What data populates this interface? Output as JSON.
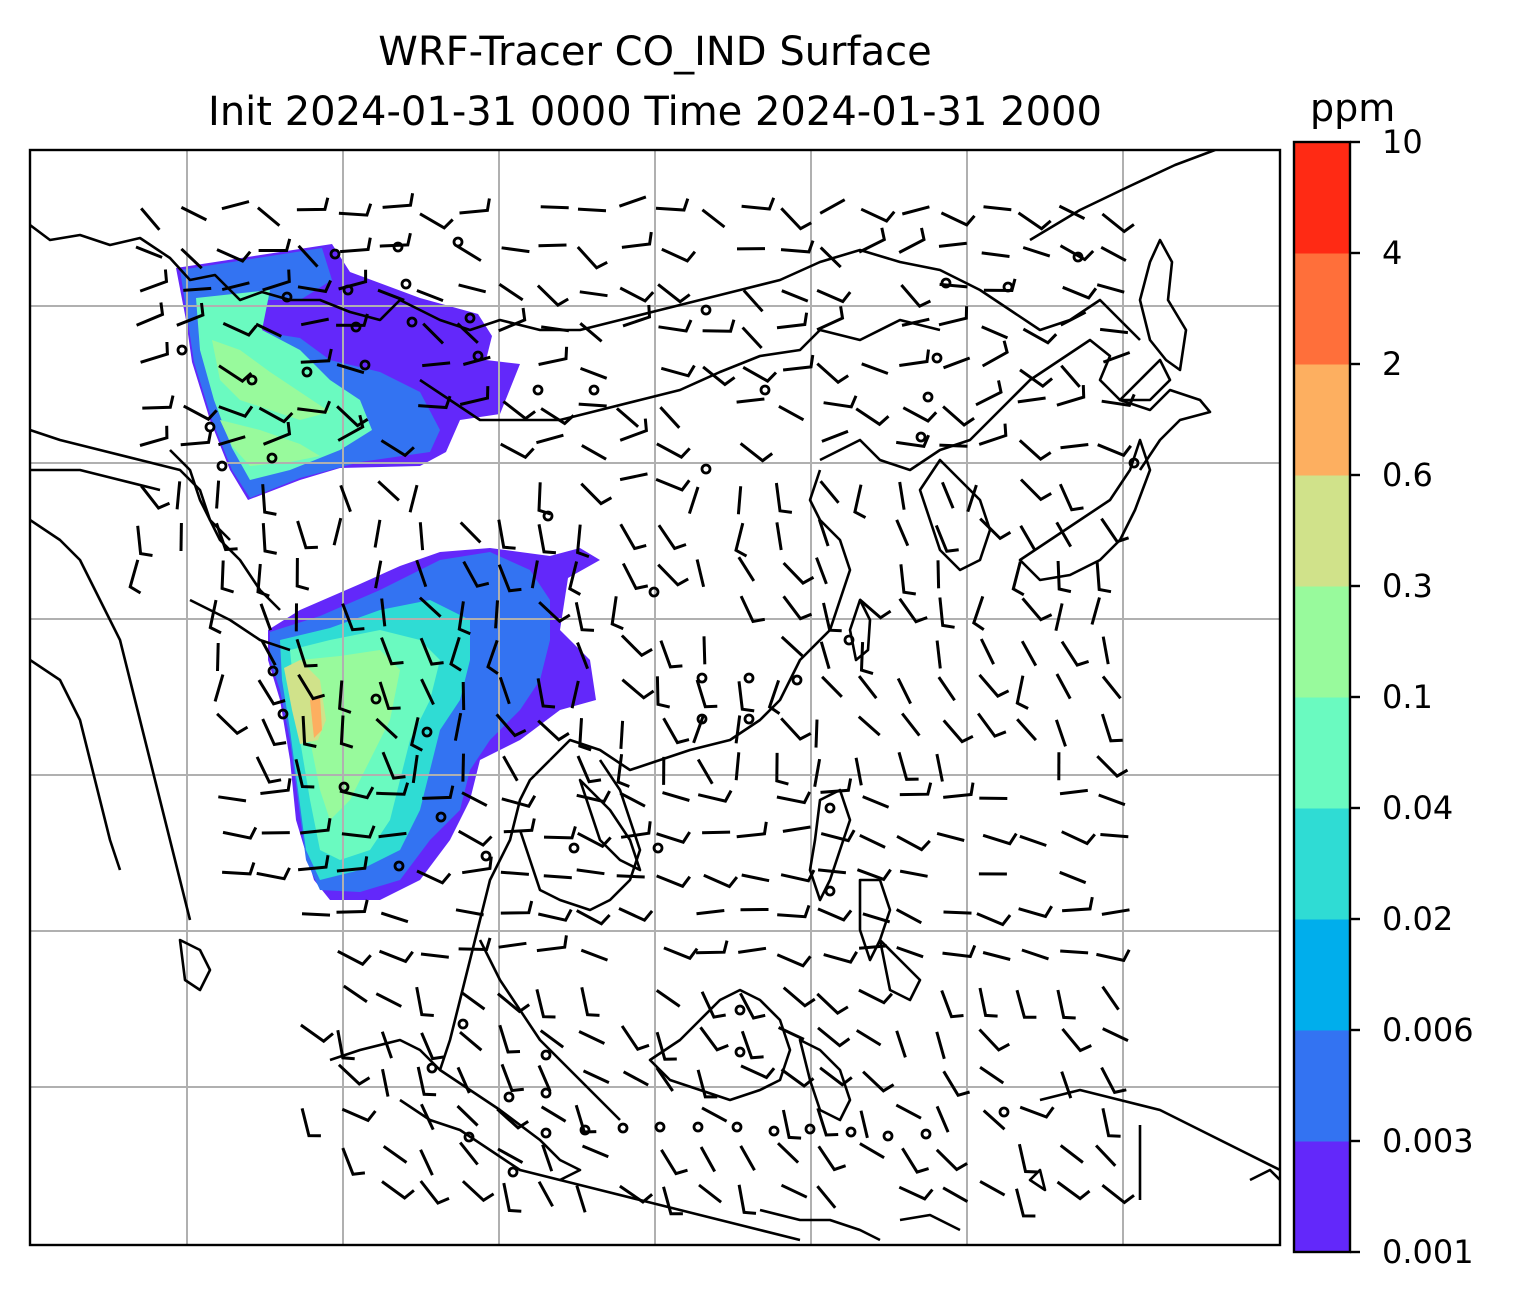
{
  "title_line1": "WRF-Tracer CO_IND Surface",
  "title_line2": "Init 2024-01-31 0000 Time 2024-01-31 2000",
  "colorbar": {
    "unit": "ppm",
    "levels": [
      "0.001",
      "0.003",
      "0.006",
      "0.02",
      "0.04",
      "0.1",
      "0.3",
      "0.6",
      "2",
      "4",
      "10"
    ],
    "colors": [
      "#6328fa",
      "#3373f2",
      "#00aeec",
      "#2fdcd4",
      "#6afac0",
      "#98fa9c",
      "#d0e28a",
      "#fdaf60",
      "#ff6f3a",
      "#ff2a14"
    ]
  },
  "map": {
    "background": "#ffffff",
    "grid": "on",
    "coastline_color": "#000000",
    "wind_symbol": "barbs",
    "calm_symbol": "circle"
  }
}
